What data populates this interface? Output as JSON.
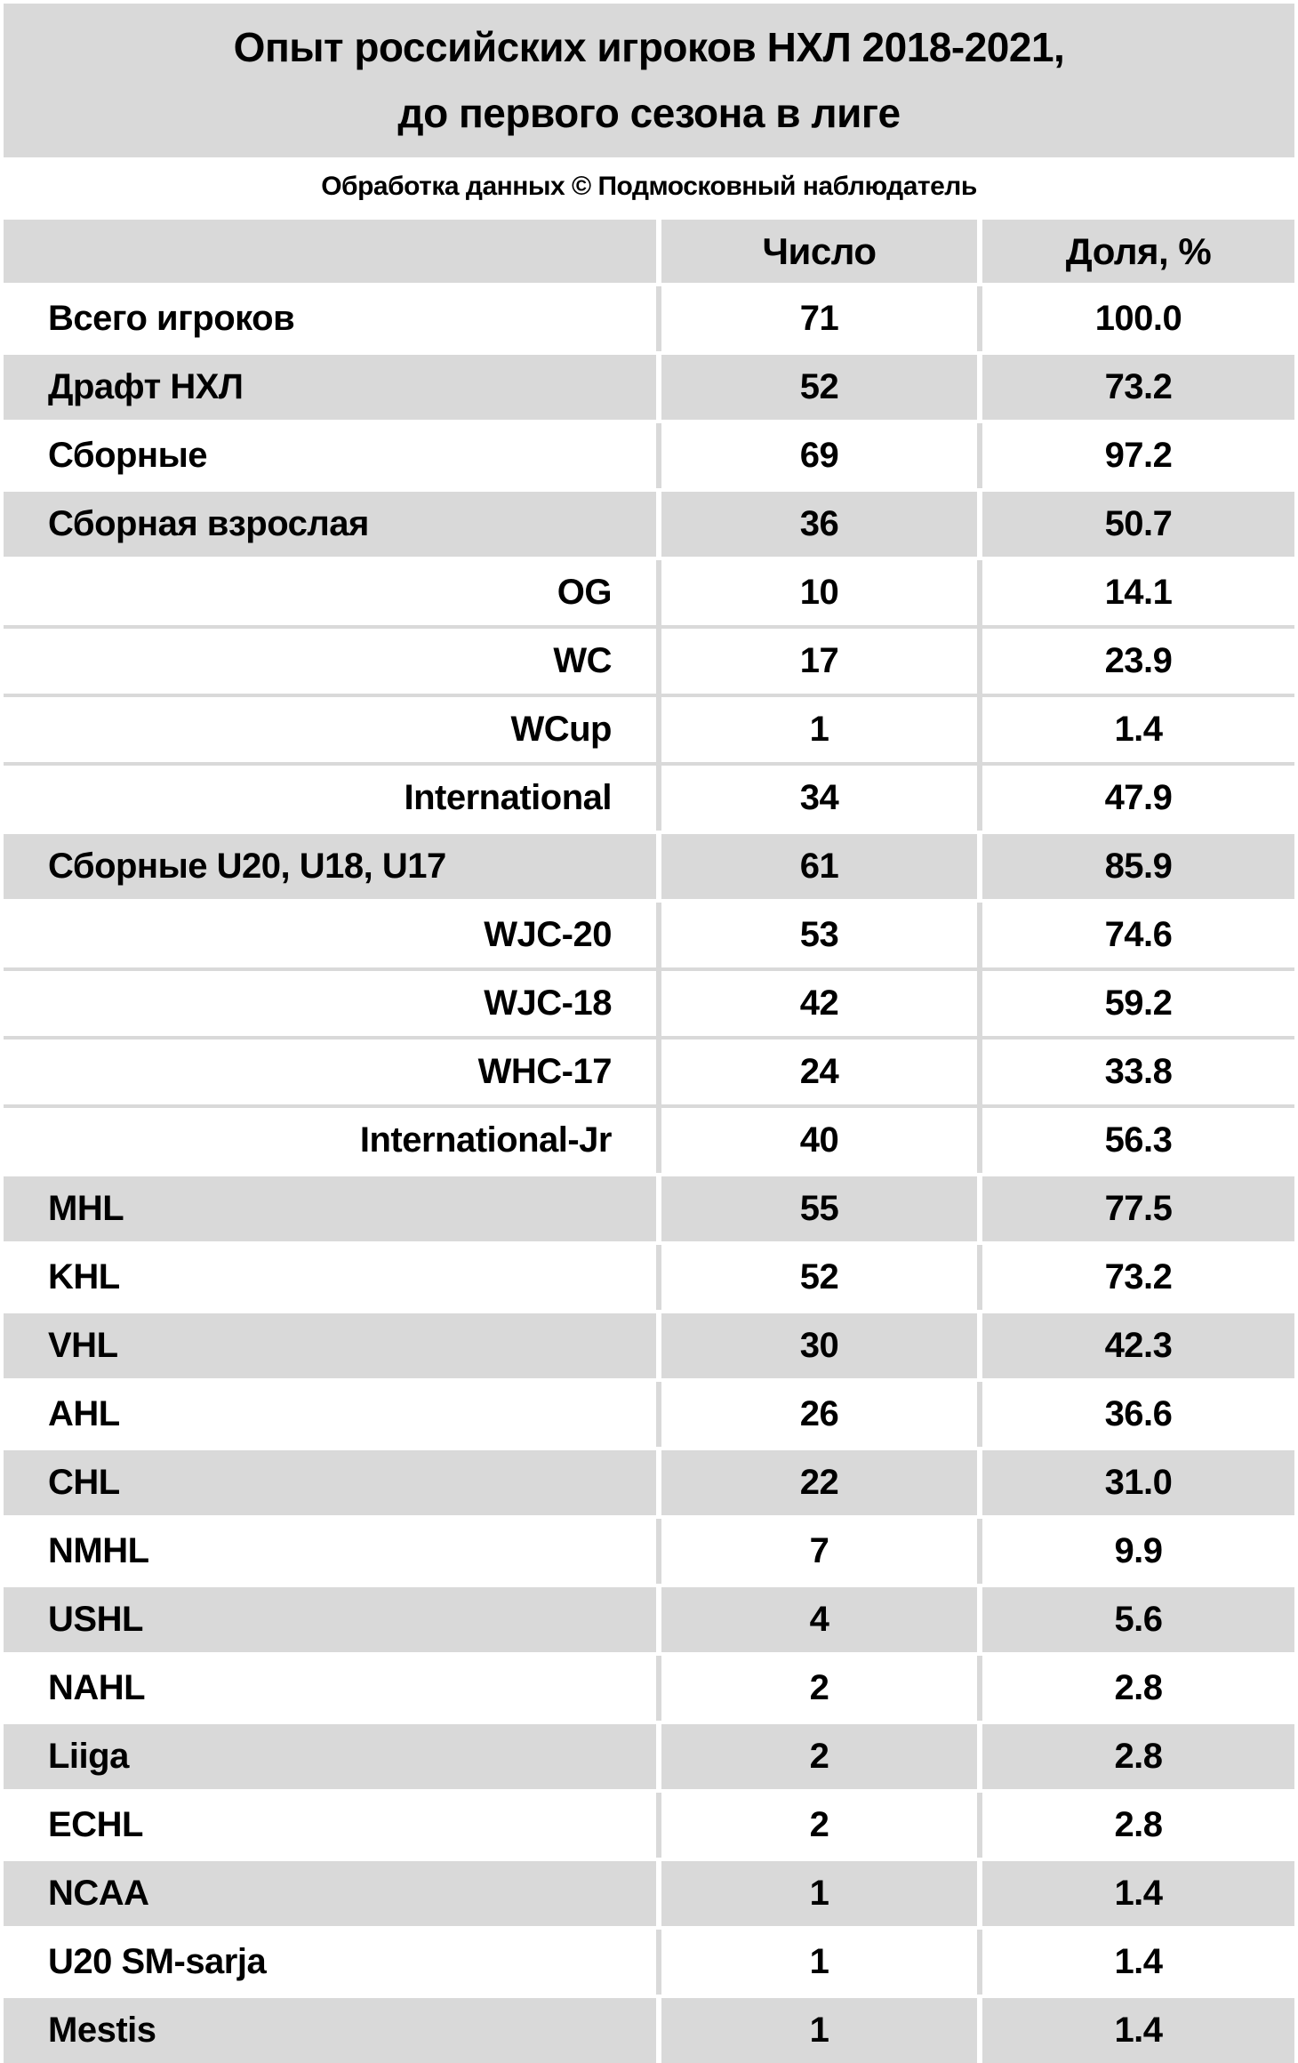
{
  "title_line1": "Опыт российских игроков НХЛ 2018-2021,",
  "title_line2": "до первого сезона в лиге",
  "subtitle": "Обработка данных © Подмосковный наблюдатель",
  "header": {
    "count": "Число",
    "share": "Доля, %"
  },
  "colors": {
    "shaded_row_bg": "#d9d9d9",
    "plain_row_bg": "#ffffff",
    "text": "#000000"
  },
  "chart_data": {
    "type": "table",
    "title": "Опыт российских игроков НХЛ 2018-2021, до первого сезона в лиге",
    "subtitle": "Обработка данных © Подмосковный наблюдатель",
    "columns": [
      "",
      "Число",
      "Доля, %"
    ],
    "rows": [
      {
        "label": "Всего игроков",
        "count": 71,
        "share": 100.0,
        "indent": false,
        "shaded": false
      },
      {
        "label": "Драфт НХЛ",
        "count": 52,
        "share": 73.2,
        "indent": false,
        "shaded": true
      },
      {
        "label": "Сборные",
        "count": 69,
        "share": 97.2,
        "indent": false,
        "shaded": false
      },
      {
        "label": "Сборная взрослая",
        "count": 36,
        "share": 50.7,
        "indent": false,
        "shaded": true
      },
      {
        "label": "OG",
        "count": 10,
        "share": 14.1,
        "indent": true,
        "shaded": false
      },
      {
        "label": "WC",
        "count": 17,
        "share": 23.9,
        "indent": true,
        "shaded": false
      },
      {
        "label": "WCup",
        "count": 1,
        "share": 1.4,
        "indent": true,
        "shaded": false
      },
      {
        "label": "International",
        "count": 34,
        "share": 47.9,
        "indent": true,
        "shaded": false
      },
      {
        "label": "Сборные U20, U18, U17",
        "count": 61,
        "share": 85.9,
        "indent": false,
        "shaded": true
      },
      {
        "label": "WJC-20",
        "count": 53,
        "share": 74.6,
        "indent": true,
        "shaded": false
      },
      {
        "label": "WJC-18",
        "count": 42,
        "share": 59.2,
        "indent": true,
        "shaded": false
      },
      {
        "label": "WHC-17",
        "count": 24,
        "share": 33.8,
        "indent": true,
        "shaded": false
      },
      {
        "label": "International-Jr",
        "count": 40,
        "share": 56.3,
        "indent": true,
        "shaded": false
      },
      {
        "label": "MHL",
        "count": 55,
        "share": 77.5,
        "indent": false,
        "shaded": true
      },
      {
        "label": "KHL",
        "count": 52,
        "share": 73.2,
        "indent": false,
        "shaded": false
      },
      {
        "label": "VHL",
        "count": 30,
        "share": 42.3,
        "indent": false,
        "shaded": true
      },
      {
        "label": "AHL",
        "count": 26,
        "share": 36.6,
        "indent": false,
        "shaded": false
      },
      {
        "label": "CHL",
        "count": 22,
        "share": 31.0,
        "indent": false,
        "shaded": true
      },
      {
        "label": "NMHL",
        "count": 7,
        "share": 9.9,
        "indent": false,
        "shaded": false
      },
      {
        "label": "USHL",
        "count": 4,
        "share": 5.6,
        "indent": false,
        "shaded": true
      },
      {
        "label": "NAHL",
        "count": 2,
        "share": 2.8,
        "indent": false,
        "shaded": false
      },
      {
        "label": "Liiga",
        "count": 2,
        "share": 2.8,
        "indent": false,
        "shaded": true
      },
      {
        "label": "ECHL",
        "count": 2,
        "share": 2.8,
        "indent": false,
        "shaded": false
      },
      {
        "label": "NCAA",
        "count": 1,
        "share": 1.4,
        "indent": false,
        "shaded": true
      },
      {
        "label": "U20 SM-sarja",
        "count": 1,
        "share": 1.4,
        "indent": false,
        "shaded": false
      },
      {
        "label": "Mestis",
        "count": 1,
        "share": 1.4,
        "indent": false,
        "shaded": true
      }
    ]
  }
}
